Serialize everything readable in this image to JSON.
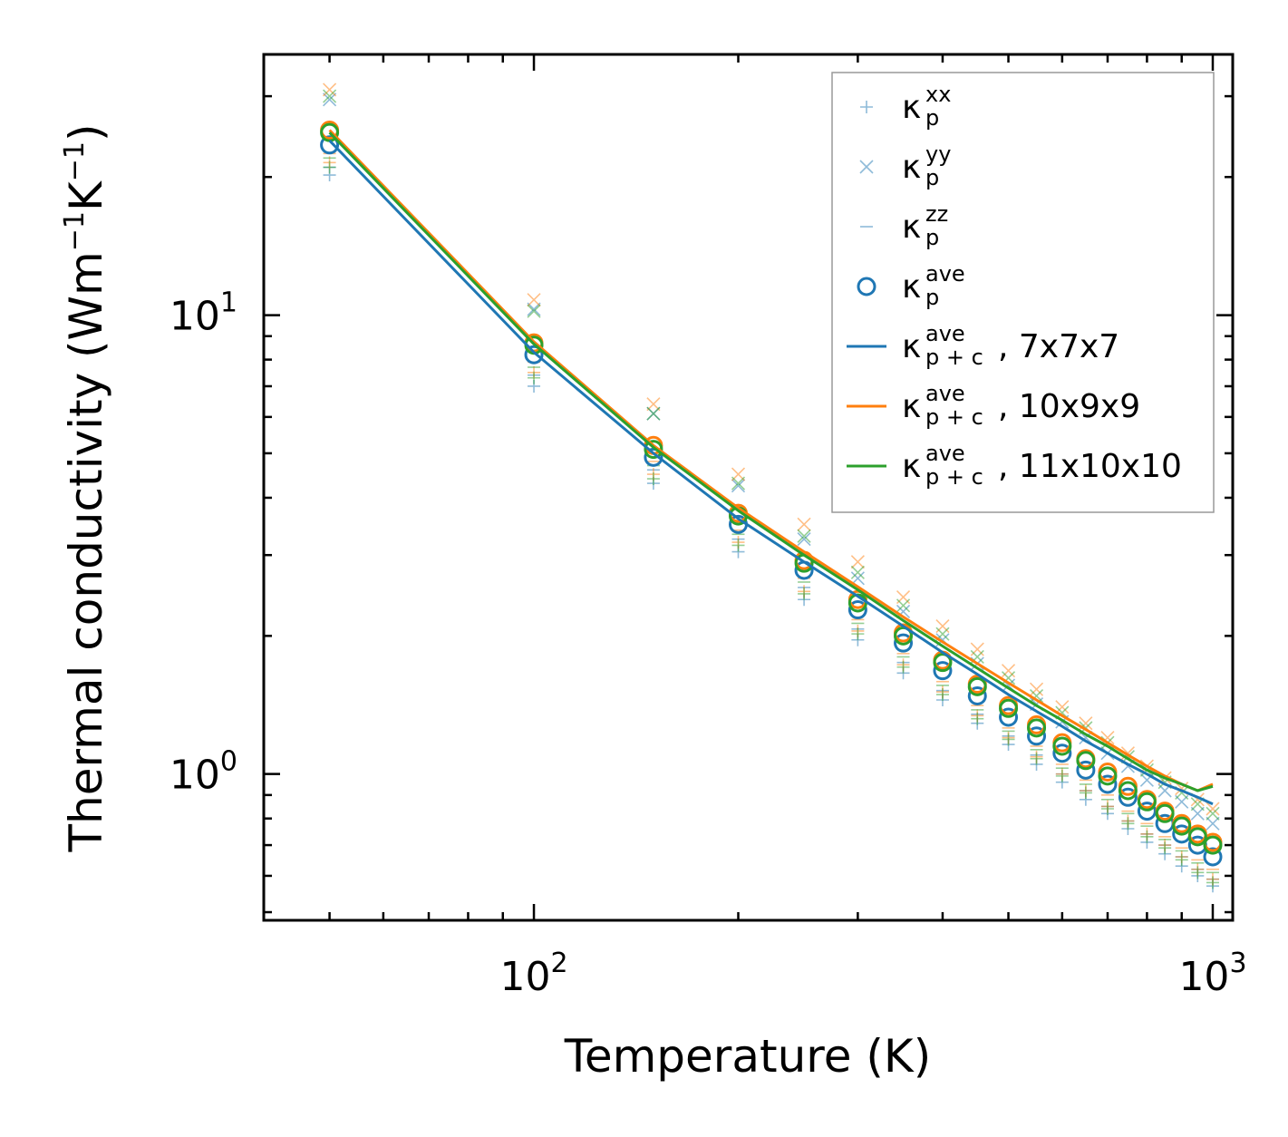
{
  "chart_data": {
    "type": "line",
    "title": "",
    "xlabel": "Temperature (K)",
    "ylabel": "Thermal conductivity (Wm",
    "ylabel_sup1": "−1",
    "ylabel_mid": "K",
    "ylabel_sup2": "−1",
    "ylabel_end": ")",
    "xscale": "log",
    "yscale": "log",
    "xlim": [
      40,
      1070
    ],
    "ylim": [
      0.48,
      37
    ],
    "x_ticks": [
      {
        "value": 100,
        "base": "10",
        "exp": "2"
      },
      {
        "value": 1000,
        "base": "10",
        "exp": "3"
      }
    ],
    "y_ticks": [
      {
        "value": 1,
        "base": "10",
        "exp": "0"
      },
      {
        "value": 10,
        "base": "10",
        "exp": "1"
      }
    ],
    "x": [
      50,
      100,
      150,
      200,
      250,
      300,
      350,
      400,
      450,
      500,
      550,
      600,
      650,
      700,
      750,
      800,
      850,
      900,
      950,
      1000
    ],
    "meshes": [
      {
        "name": "7x7x7",
        "color": "#1f77b4",
        "xx": [
          20.2,
          7.0,
          4.3,
          3.05,
          2.4,
          1.96,
          1.66,
          1.45,
          1.29,
          1.16,
          1.05,
          0.96,
          0.88,
          0.82,
          0.76,
          0.71,
          0.67,
          0.63,
          0.6,
          0.57
        ],
        "yy": [
          29.5,
          10.3,
          6.1,
          4.25,
          3.25,
          2.67,
          2.26,
          1.96,
          1.74,
          1.56,
          1.42,
          1.3,
          1.2,
          1.11,
          1.04,
          0.97,
          0.92,
          0.87,
          0.82,
          0.78
        ],
        "zz": [
          21.0,
          7.4,
          4.6,
          3.25,
          2.55,
          2.07,
          1.75,
          1.52,
          1.35,
          1.21,
          1.1,
          1.0,
          0.92,
          0.85,
          0.79,
          0.74,
          0.7,
          0.66,
          0.62,
          0.59
        ],
        "ave": [
          23.5,
          8.2,
          4.9,
          3.5,
          2.78,
          2.28,
          1.93,
          1.68,
          1.48,
          1.33,
          1.21,
          1.11,
          1.02,
          0.95,
          0.89,
          0.83,
          0.78,
          0.74,
          0.7,
          0.66
        ],
        "pc": [
          24.0,
          8.3,
          5.0,
          3.6,
          2.9,
          2.44,
          2.1,
          1.84,
          1.65,
          1.49,
          1.37,
          1.27,
          1.18,
          1.11,
          1.05,
          1.0,
          0.95,
          0.92,
          0.89,
          0.86
        ]
      },
      {
        "name": "10x9x9",
        "color": "#ff7f0e",
        "xx": [
          21.5,
          7.5,
          4.5,
          3.2,
          2.5,
          2.05,
          1.73,
          1.51,
          1.34,
          1.2,
          1.09,
          1.0,
          0.92,
          0.85,
          0.79,
          0.74,
          0.7,
          0.66,
          0.62,
          0.59
        ],
        "yy": [
          31.0,
          10.8,
          6.4,
          4.5,
          3.5,
          2.9,
          2.43,
          2.1,
          1.87,
          1.68,
          1.53,
          1.4,
          1.29,
          1.2,
          1.11,
          1.04,
          0.98,
          0.93,
          0.88,
          0.84
        ],
        "zz": [
          22.5,
          7.9,
          4.8,
          3.4,
          2.67,
          2.17,
          1.83,
          1.59,
          1.41,
          1.26,
          1.15,
          1.05,
          0.97,
          0.9,
          0.83,
          0.78,
          0.73,
          0.69,
          0.65,
          0.62
        ],
        "ave": [
          25.3,
          8.7,
          5.2,
          3.7,
          2.92,
          2.4,
          2.03,
          1.77,
          1.57,
          1.41,
          1.28,
          1.17,
          1.08,
          1.01,
          0.94,
          0.88,
          0.83,
          0.78,
          0.74,
          0.71
        ],
        "pc": [
          25.3,
          8.75,
          5.2,
          3.8,
          3.05,
          2.56,
          2.2,
          1.94,
          1.74,
          1.58,
          1.45,
          1.34,
          1.25,
          1.17,
          1.1,
          1.04,
          0.99,
          0.95,
          0.92,
          0.95
        ]
      },
      {
        "name": "11x10x10",
        "color": "#2ca02c",
        "xx": [
          21.0,
          7.3,
          4.4,
          3.15,
          2.47,
          2.02,
          1.71,
          1.49,
          1.32,
          1.19,
          1.08,
          0.99,
          0.91,
          0.84,
          0.78,
          0.73,
          0.69,
          0.65,
          0.61,
          0.58
        ],
        "yy": [
          30.0,
          10.2,
          6.1,
          4.3,
          3.3,
          2.75,
          2.33,
          2.02,
          1.8,
          1.62,
          1.48,
          1.36,
          1.26,
          1.17,
          1.09,
          1.02,
          0.96,
          0.91,
          0.86,
          0.82
        ],
        "zz": [
          22.0,
          7.7,
          4.7,
          3.33,
          2.62,
          2.13,
          1.8,
          1.56,
          1.38,
          1.24,
          1.13,
          1.03,
          0.95,
          0.88,
          0.82,
          0.77,
          0.72,
          0.68,
          0.64,
          0.61
        ],
        "ave": [
          25.0,
          8.6,
          5.1,
          3.65,
          2.88,
          2.36,
          2.0,
          1.75,
          1.55,
          1.39,
          1.26,
          1.15,
          1.07,
          0.99,
          0.92,
          0.87,
          0.82,
          0.77,
          0.73,
          0.7
        ],
        "pc": [
          25.0,
          8.65,
          5.15,
          3.75,
          3.0,
          2.52,
          2.16,
          1.9,
          1.7,
          1.54,
          1.41,
          1.31,
          1.22,
          1.15,
          1.08,
          1.02,
          0.98,
          0.95,
          0.92,
          0.94
        ]
      }
    ],
    "legend": {
      "placement": "top-right",
      "entries": [
        {
          "id": "xx",
          "marker": "plus",
          "color": "#1f77b4",
          "base": "κ",
          "sub": "p",
          "sup": "xx",
          "suffix": ""
        },
        {
          "id": "yy",
          "marker": "cross",
          "color": "#1f77b4",
          "base": "κ",
          "sub": "p",
          "sup": "yy",
          "suffix": ""
        },
        {
          "id": "zz",
          "marker": "dash",
          "color": "#1f77b4",
          "base": "κ",
          "sub": "p",
          "sup": "zz",
          "suffix": ""
        },
        {
          "id": "ave",
          "marker": "circle",
          "color": "#1f77b4",
          "base": "κ",
          "sub": "p",
          "sup": "ave",
          "suffix": ""
        },
        {
          "id": "pc1",
          "marker": "line",
          "color": "#1f77b4",
          "base": "κ",
          "sub": "p + c",
          "sup": "ave",
          "suffix": ", 7x7x7"
        },
        {
          "id": "pc2",
          "marker": "line",
          "color": "#ff7f0e",
          "base": "κ",
          "sub": "p + c",
          "sup": "ave",
          "suffix": ", 10x9x9"
        },
        {
          "id": "pc3",
          "marker": "line",
          "color": "#2ca02c",
          "base": "κ",
          "sub": "p + c",
          "sup": "ave",
          "suffix": ", 11x10x10"
        }
      ]
    }
  }
}
